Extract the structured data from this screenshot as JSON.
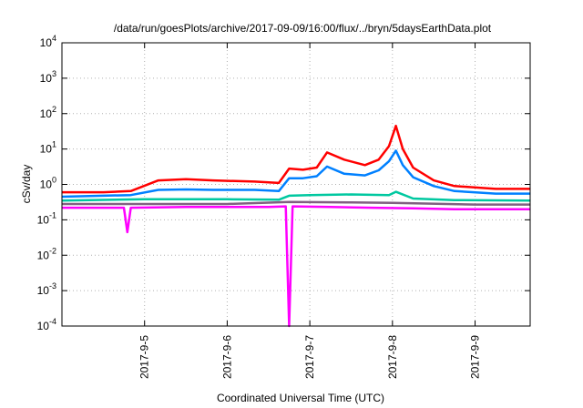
{
  "chart_data": {
    "type": "line",
    "title": "/data/run/goesPlots/archive/2017-09-09/16:00/flux/../bryn/5daysEarthData.plot",
    "xlabel": "Coordinated Universal Time (UTC)",
    "ylabel": "cSv/day",
    "y_scale": "log",
    "ylim": [
      0.0001,
      10000
    ],
    "y_ticks": [
      {
        "base": "10",
        "exp": "-4",
        "value": 0.0001
      },
      {
        "base": "10",
        "exp": "-3",
        "value": 0.001
      },
      {
        "base": "10",
        "exp": "-2",
        "value": 0.01
      },
      {
        "base": "10",
        "exp": "-1",
        "value": 0.1
      },
      {
        "base": "10",
        "exp": "0",
        "value": 1
      },
      {
        "base": "10",
        "exp": "1",
        "value": 10
      },
      {
        "base": "10",
        "exp": "2",
        "value": 100
      },
      {
        "base": "10",
        "exp": "3",
        "value": 1000
      },
      {
        "base": "10",
        "exp": "4",
        "value": 10000
      }
    ],
    "x_unit": "days",
    "xlim": [
      "2017-09-04 00:00",
      "2017-09-09 16:00"
    ],
    "x_ticks": [
      "2017-9-5",
      "2017-9-6",
      "2017-9-7",
      "2017-9-8",
      "2017-9-9"
    ],
    "x_tick_dates": [
      "2017-09-05",
      "2017-09-06",
      "2017-09-07",
      "2017-09-08",
      "2017-09-09"
    ],
    "grid": true,
    "series": [
      {
        "color": "#ff0000",
        "x": [
          "2017-09-04 00:00",
          "2017-09-04 12:00",
          "2017-09-04 20:00",
          "2017-09-05 04:00",
          "2017-09-05 12:00",
          "2017-09-05 20:00",
          "2017-09-06 08:00",
          "2017-09-06 15:00",
          "2017-09-06 18:00",
          "2017-09-06 22:00",
          "2017-09-07 02:00",
          "2017-09-07 05:00",
          "2017-09-07 10:00",
          "2017-09-07 16:00",
          "2017-09-07 20:00",
          "2017-09-07 23:00",
          "2017-09-08 01:00",
          "2017-09-08 03:00",
          "2017-09-08 06:00",
          "2017-09-08 12:00",
          "2017-09-08 18:00",
          "2017-09-09 06:00",
          "2017-09-09 16:00"
        ],
        "values": [
          0.6,
          0.6,
          0.65,
          1.3,
          1.4,
          1.3,
          1.2,
          1.1,
          2.8,
          2.6,
          3.0,
          8.0,
          5.0,
          3.5,
          5.0,
          12.0,
          45.0,
          10.0,
          3.0,
          1.3,
          0.9,
          0.75,
          0.75
        ]
      },
      {
        "color": "#0080ff",
        "x": [
          "2017-09-04 00:00",
          "2017-09-04 12:00",
          "2017-09-04 20:00",
          "2017-09-05 04:00",
          "2017-09-05 12:00",
          "2017-09-05 20:00",
          "2017-09-06 08:00",
          "2017-09-06 15:00",
          "2017-09-06 18:00",
          "2017-09-06 22:00",
          "2017-09-07 02:00",
          "2017-09-07 05:00",
          "2017-09-07 10:00",
          "2017-09-07 16:00",
          "2017-09-07 20:00",
          "2017-09-07 23:00",
          "2017-09-08 01:00",
          "2017-09-08 03:00",
          "2017-09-08 06:00",
          "2017-09-08 12:00",
          "2017-09-08 18:00",
          "2017-09-09 06:00",
          "2017-09-09 16:00"
        ],
        "values": [
          0.45,
          0.48,
          0.5,
          0.7,
          0.72,
          0.7,
          0.7,
          0.65,
          1.5,
          1.5,
          1.7,
          3.2,
          2.0,
          1.8,
          2.5,
          4.5,
          9.0,
          3.5,
          1.6,
          0.9,
          0.65,
          0.55,
          0.55
        ]
      },
      {
        "color": "#00c8a0",
        "x": [
          "2017-09-04 00:00",
          "2017-09-05 00:00",
          "2017-09-06 00:00",
          "2017-09-06 15:00",
          "2017-09-06 18:00",
          "2017-09-07 00:00",
          "2017-09-07 12:00",
          "2017-09-07 23:00",
          "2017-09-08 01:00",
          "2017-09-08 06:00",
          "2017-09-08 18:00",
          "2017-09-09 16:00"
        ],
        "values": [
          0.35,
          0.38,
          0.38,
          0.37,
          0.48,
          0.5,
          0.52,
          0.5,
          0.62,
          0.4,
          0.36,
          0.35
        ]
      },
      {
        "color": "#806080",
        "x": [
          "2017-09-04 00:00",
          "2017-09-05 00:00",
          "2017-09-06 00:00",
          "2017-09-06 18:00",
          "2017-09-07 12:00",
          "2017-09-08 00:00",
          "2017-09-09 00:00",
          "2017-09-09 16:00"
        ],
        "values": [
          0.28,
          0.28,
          0.28,
          0.32,
          0.31,
          0.3,
          0.27,
          0.27
        ]
      },
      {
        "color": "#ff00ff",
        "x": [
          "2017-09-04 00:00",
          "2017-09-04 18:00",
          "2017-09-04 19:00",
          "2017-09-04 20:00",
          "2017-09-05 12:00",
          "2017-09-06 12:00",
          "2017-09-06 17:00",
          "2017-09-06 18:00",
          "2017-09-06 19:00",
          "2017-09-07 06:00",
          "2017-09-07 18:00",
          "2017-09-08 06:00",
          "2017-09-08 18:00",
          "2017-09-09 16:00"
        ],
        "values": [
          0.22,
          0.22,
          0.045,
          0.22,
          0.23,
          0.23,
          0.24,
          0.0001,
          0.24,
          0.23,
          0.22,
          0.21,
          0.2,
          0.2
        ]
      }
    ]
  }
}
